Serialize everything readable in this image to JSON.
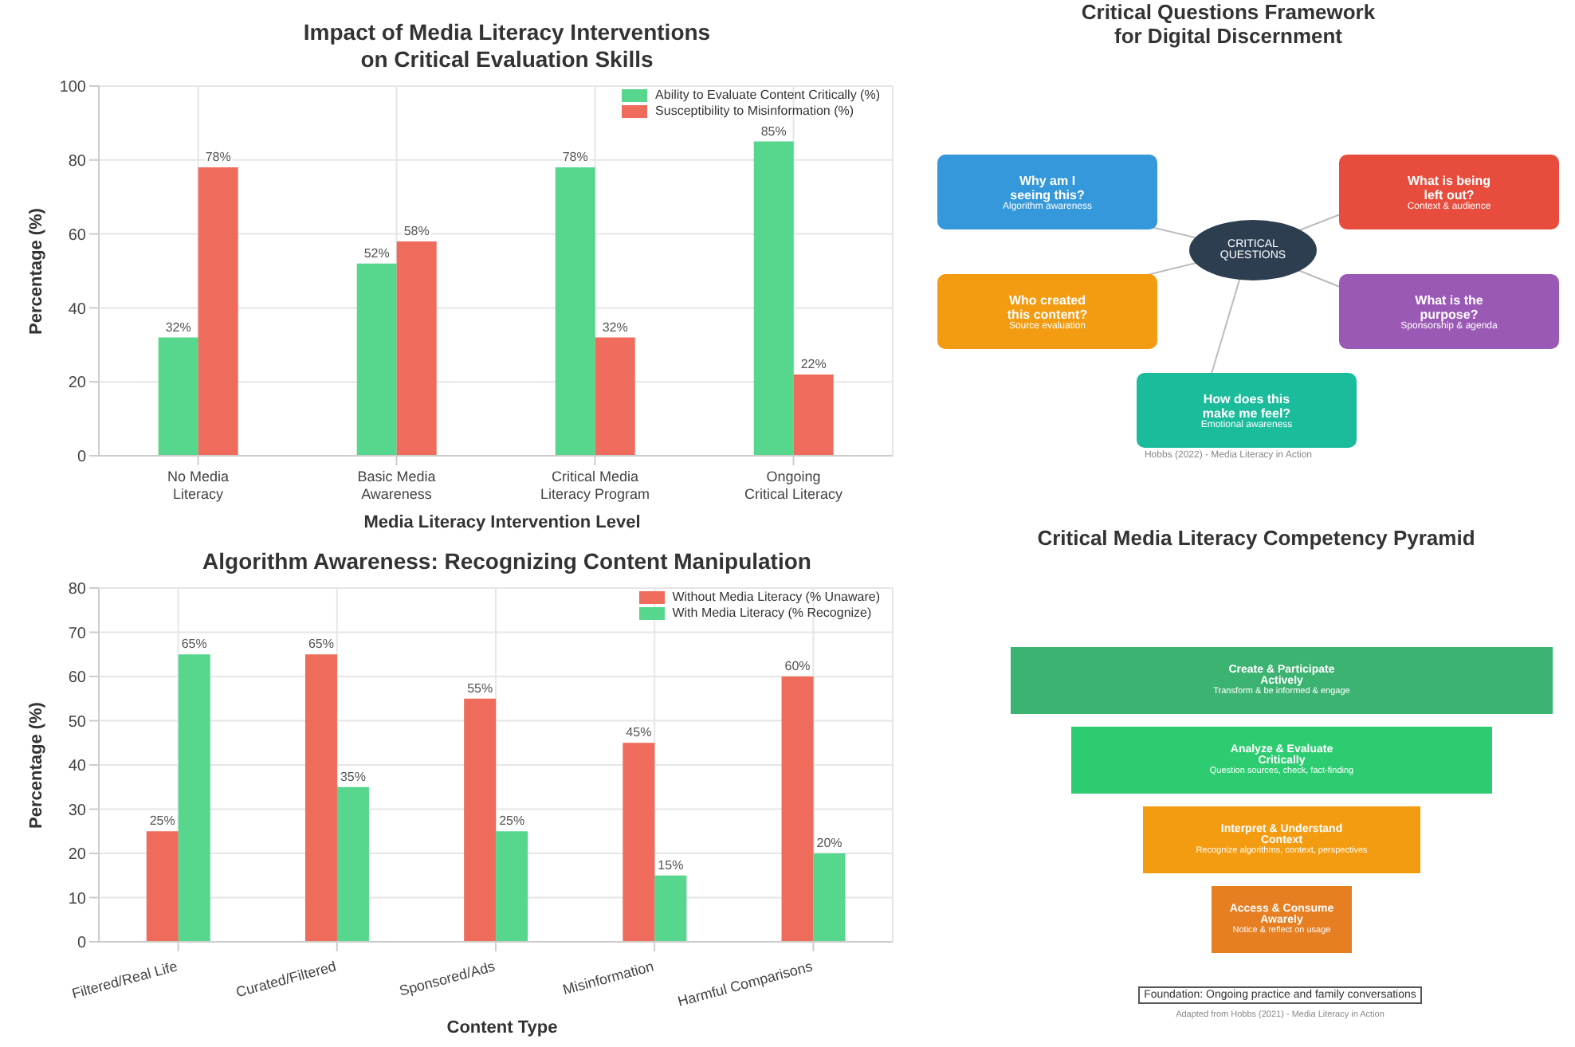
{
  "chart_data": [
    {
      "type": "bar",
      "title": "Impact of Media Literacy Interventions\non Critical Evaluation Skills",
      "xlabel": "Media Literacy Intervention Level",
      "ylabel": "Percentage (%)",
      "categories": [
        "No Media\nLiteracy",
        "Basic Media\nAwareness",
        "Critical Media\nLiteracy Program",
        "Ongoing\nCritical Literacy"
      ],
      "series": [
        {
          "name": "Ability to Evaluate Content Critically (%)",
          "color": "#57d68d",
          "values": [
            32,
            52,
            78,
            85
          ],
          "value_labels": [
            "32%",
            "52%",
            "78%",
            "85%"
          ]
        },
        {
          "name": "Susceptibility to Misinformation (%)",
          "color": "#ef6b5b",
          "values": [
            78,
            58,
            32,
            22
          ],
          "value_labels": [
            "78%",
            "58%",
            "32%",
            "22%"
          ]
        }
      ],
      "ylim": [
        0,
        100
      ],
      "yticks": [
        0,
        20,
        40,
        60,
        80,
        100
      ],
      "grid": true,
      "legend": "top right"
    },
    {
      "type": "bar",
      "title": "Algorithm Awareness: Recognizing Content Manipulation",
      "xlabel": "Content Type",
      "ylabel": "Percentage (%)",
      "categories": [
        "Filtered/Real Life",
        "Curated/Filtered",
        "Sponsored/Ads",
        "Misinformation",
        "Harmful Comparisons"
      ],
      "series": [
        {
          "name": "Without Media Literacy (% Unaware)",
          "color": "#ef6b5b",
          "values": [
            25,
            65,
            55,
            45,
            60
          ],
          "value_labels": [
            "25%",
            "65%",
            "55%",
            "45%",
            "60%"
          ]
        },
        {
          "name": "With Media Literacy (% Recognize)",
          "color": "#57d68d",
          "values": [
            65,
            35,
            25,
            15,
            20
          ],
          "value_labels": [
            "65%",
            "35%",
            "25%",
            "15%",
            "20%"
          ]
        }
      ],
      "ylim": [
        0,
        80
      ],
      "yticks": [
        0,
        10,
        20,
        30,
        40,
        50,
        60,
        70,
        80
      ],
      "grid": true,
      "legend": "top right"
    },
    {
      "type": "other",
      "title": "Critical Questions Framework\nfor Digital Discernment",
      "categories": [
        "CRITICAL\nQUESTIONS",
        "Why am I\nseeing this?",
        "What is being\nleft out?",
        "Who created\nthis content?",
        "What is the\npurpose?",
        "How does this\nmake me feel?"
      ],
      "colors": [
        "#2c3e50",
        "#3498db",
        "#e74c3c",
        "#f39c12",
        "#9b59b6",
        "#1abc9c"
      ],
      "annotations": [
        "Algorithm awareness",
        "Context & audience",
        "Source evaluation",
        "Sponsorship & agenda",
        "Emotional awareness",
        "Hobbs (2022) - Media Literacy in Action"
      ]
    },
    {
      "type": "other",
      "title": "Critical Media Literacy Competency Pyramid",
      "categories": [
        "Create & Participate\nActively",
        "Analyze & Evaluate\nCritically",
        "Interpret & Understand\nContext",
        "Access & Consume\nAwarely"
      ],
      "colors": [
        "#3cb371",
        "#2ecc71",
        "#f39c12",
        "#e67e22"
      ],
      "annotations": [
        "Transform & be informed & engage",
        "Question sources, check, fact-finding",
        "Recognize algorithms, context, perspectives",
        "Notice & reflect on usage",
        "Foundation: Ongoing practice and family conversations",
        "Adapted from Hobbs (2021) - Media Literacy in Action"
      ]
    }
  ]
}
